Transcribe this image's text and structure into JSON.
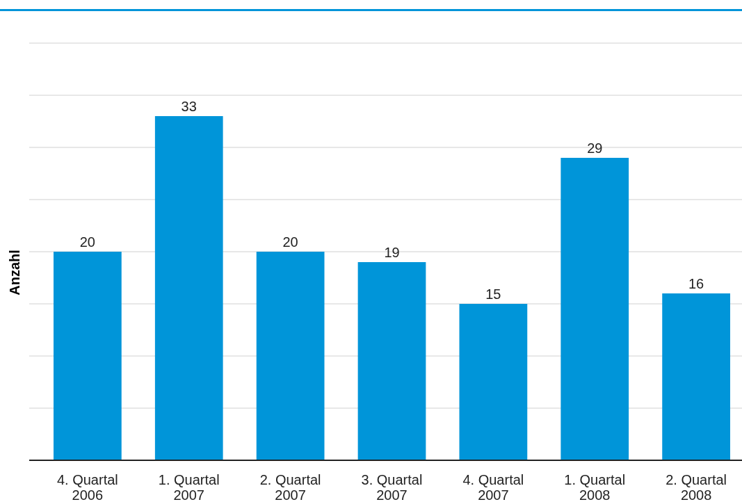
{
  "chart_data": {
    "type": "bar",
    "ylabel": "Anzahl",
    "categories": [
      "4. Quartal 2006",
      "1. Quartal 2007",
      "2. Quartal 2007",
      "3. Quartal 2007",
      "4. Quartal 2007",
      "1. Quartal 2008",
      "2. Quartal 2008"
    ],
    "values": [
      20,
      33,
      20,
      19,
      15,
      29,
      16
    ],
    "color": "#0095d9",
    "ylim": [
      0,
      40
    ],
    "yticks": [
      {
        "value": 0,
        "label": null
      },
      {
        "value": 5,
        "label": null
      },
      {
        "value": 10,
        "label": null
      },
      {
        "value": 15,
        "label": null
      },
      {
        "value": 20,
        "label": null
      },
      {
        "value": 25,
        "label": null
      },
      {
        "value": 30,
        "label": null
      },
      {
        "value": 35,
        "label": null
      },
      {
        "value": 40,
        "label": null
      }
    ],
    "grid": "y",
    "tick_labels": "x",
    "data_labels": true
  }
}
